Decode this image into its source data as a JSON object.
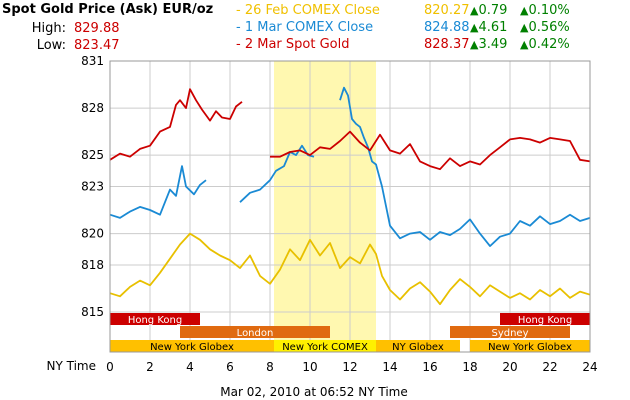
{
  "header": {
    "title": "Spot Gold Price (Ask) EUR/oz",
    "high_label": "High:",
    "high_value": "829.88",
    "low_label": "Low:",
    "low_value": "823.47",
    "legend": [
      {
        "label": "- 26 Feb COMEX Close",
        "value": "820.27",
        "chg": "0.79",
        "pct": "0.10%",
        "color": "#f0c000"
      },
      {
        "label": "- 1 Mar COMEX Close",
        "value": "824.88",
        "chg": "4.61",
        "pct": "0.56%",
        "color": "#1a8ad4"
      },
      {
        "label": "- 2 Mar Spot Gold",
        "value": "828.37",
        "chg": "3.49",
        "pct": "0.42%",
        "color": "#cc0000"
      }
    ]
  },
  "footer": {
    "x_axis_label": "NY Time",
    "timestamp": "Mar 02, 2010 at 06:52 NY Time"
  },
  "colors": {
    "red": "#cc0000",
    "blue": "#1a8ad4",
    "yellow": "#e8c000",
    "green": "#008000",
    "highlight": "#fff8b0",
    "hongkong": "#cc0000",
    "london": "#e06a10",
    "nyglobex": "#ffc000",
    "nycomex": "#fff000",
    "sydney": "#e06a10"
  },
  "chart_data": {
    "type": "line",
    "xlabel": "NY Time",
    "ylabel": "",
    "xlim": [
      0,
      24
    ],
    "ylim": [
      815,
      831
    ],
    "x_ticks": [
      0,
      2,
      4,
      6,
      8,
      10,
      12,
      14,
      16,
      18,
      20,
      22,
      24
    ],
    "y_ticks": [
      815,
      818,
      820,
      823,
      825,
      828,
      831
    ],
    "grid": true,
    "highlight_range": [
      8.2,
      13.3
    ],
    "sessions": [
      {
        "name": "Hong Kong",
        "row": 0,
        "start": 0,
        "end": 4.5,
        "color": "#cc0000",
        "text_color": "#ffffff"
      },
      {
        "name": "Hong Kong",
        "row": 0,
        "start": 19.5,
        "end": 24,
        "color": "#cc0000",
        "text_color": "#ffffff"
      },
      {
        "name": "London",
        "row": 1,
        "start": 3.5,
        "end": 11,
        "color": "#e06a10",
        "text_color": "#ffffff"
      },
      {
        "name": "Sydney",
        "row": 1,
        "start": 17,
        "end": 23,
        "color": "#e06a10",
        "text_color": "#ffffff"
      },
      {
        "name": "New York Globex",
        "row": 2,
        "start": 0,
        "end": 8.2,
        "color": "#ffc000",
        "text_color": "#000000"
      },
      {
        "name": "New York COMEX",
        "row": 2,
        "start": 8.2,
        "end": 13.3,
        "color": "#fff000",
        "text_color": "#000000"
      },
      {
        "name": "NY Globex",
        "row": 2,
        "start": 13.3,
        "end": 17.5,
        "color": "#ffc000",
        "text_color": "#000000"
      },
      {
        "name": "New York Globex",
        "row": 2,
        "start": 18,
        "end": 24,
        "color": "#ffc000",
        "text_color": "#000000"
      }
    ],
    "series": [
      {
        "name": "26 Feb COMEX Close",
        "color": "#e8c000",
        "segments": [
          [
            [
              0,
              816.2
            ],
            [
              0.5,
              816.0
            ],
            [
              1,
              816.6
            ],
            [
              1.5,
              817.0
            ],
            [
              2,
              816.7
            ],
            [
              2.5,
              817.5
            ],
            [
              3,
              818.4
            ],
            [
              3.5,
              819.3
            ],
            [
              4,
              820.0
            ],
            [
              4.5,
              819.6
            ],
            [
              5,
              819.0
            ],
            [
              5.5,
              818.6
            ],
            [
              6,
              818.3
            ],
            [
              6.5,
              817.8
            ],
            [
              7,
              818.6
            ],
            [
              7.5,
              817.3
            ],
            [
              8,
              816.8
            ],
            [
              8.5,
              817.7
            ],
            [
              9,
              819.0
            ],
            [
              9.5,
              818.3
            ],
            [
              10,
              819.6
            ],
            [
              10.5,
              818.6
            ],
            [
              11,
              819.4
            ],
            [
              11.5,
              817.8
            ],
            [
              12,
              818.5
            ],
            [
              12.5,
              818.1
            ],
            [
              13,
              819.3
            ],
            [
              13.3,
              818.7
            ],
            [
              13.6,
              817.3
            ],
            [
              14,
              816.4
            ],
            [
              14.5,
              815.8
            ],
            [
              15,
              816.5
            ],
            [
              15.5,
              816.9
            ],
            [
              16,
              816.3
            ],
            [
              16.5,
              815.5
            ],
            [
              17,
              816.4
            ],
            [
              17.5,
              817.1
            ],
            [
              18,
              816.6
            ],
            [
              18.5,
              816.0
            ],
            [
              19,
              816.7
            ],
            [
              19.5,
              816.3
            ],
            [
              20,
              815.9
            ],
            [
              20.5,
              816.2
            ],
            [
              21,
              815.8
            ],
            [
              21.5,
              816.4
            ],
            [
              22,
              816.0
            ],
            [
              22.5,
              816.5
            ],
            [
              23,
              815.9
            ],
            [
              23.5,
              816.3
            ],
            [
              24,
              816.1
            ]
          ]
        ]
      },
      {
        "name": "1 Mar COMEX Close",
        "color": "#1a8ad4",
        "segments": [
          [
            [
              0,
              821.2
            ],
            [
              0.5,
              821.0
            ],
            [
              1,
              821.4
            ],
            [
              1.5,
              821.7
            ],
            [
              2,
              821.5
            ],
            [
              2.5,
              821.2
            ],
            [
              3,
              822.8
            ],
            [
              3.3,
              822.4
            ],
            [
              3.6,
              824.3
            ],
            [
              3.8,
              823.0
            ],
            [
              4.2,
              822.5
            ],
            [
              4.5,
              823.1
            ],
            [
              4.8,
              823.4
            ]
          ],
          [
            [
              6.5,
              822.0
            ],
            [
              7,
              822.6
            ],
            [
              7.5,
              822.8
            ],
            [
              8,
              823.4
            ],
            [
              8.3,
              824.0
            ],
            [
              8.7,
              824.3
            ],
            [
              9,
              825.2
            ],
            [
              9.3,
              825.0
            ],
            [
              9.6,
              825.6
            ],
            [
              9.9,
              825.0
            ],
            [
              10.2,
              824.9
            ]
          ],
          [
            [
              11.5,
              828.5
            ],
            [
              11.7,
              829.3
            ],
            [
              11.9,
              828.8
            ],
            [
              12.1,
              827.3
            ],
            [
              12.3,
              827.0
            ],
            [
              12.5,
              826.8
            ],
            [
              12.7,
              826.1
            ],
            [
              12.9,
              825.5
            ],
            [
              13.1,
              824.6
            ],
            [
              13.3,
              824.4
            ],
            [
              13.6,
              823.0
            ],
            [
              14,
              820.5
            ],
            [
              14.5,
              819.7
            ],
            [
              15,
              820.0
            ],
            [
              15.5,
              820.1
            ],
            [
              16,
              819.6
            ],
            [
              16.5,
              820.1
            ],
            [
              17,
              819.9
            ],
            [
              17.5,
              820.3
            ],
            [
              18,
              820.9
            ],
            [
              18.5,
              820.0
            ],
            [
              19,
              819.2
            ],
            [
              19.5,
              819.8
            ],
            [
              20,
              820.0
            ],
            [
              20.5,
              820.8
            ],
            [
              21,
              820.5
            ],
            [
              21.5,
              821.1
            ],
            [
              22,
              820.6
            ],
            [
              22.5,
              820.8
            ],
            [
              23,
              821.2
            ],
            [
              23.5,
              820.8
            ],
            [
              24,
              821.0
            ]
          ]
        ]
      },
      {
        "name": "2 Mar Spot Gold",
        "color": "#cc0000",
        "segments": [
          [
            [
              0,
              824.7
            ],
            [
              0.5,
              825.1
            ],
            [
              1,
              824.9
            ],
            [
              1.5,
              825.4
            ],
            [
              2,
              825.6
            ],
            [
              2.5,
              826.5
            ],
            [
              3,
              826.8
            ],
            [
              3.3,
              828.2
            ],
            [
              3.5,
              828.5
            ],
            [
              3.8,
              828.0
            ],
            [
              4,
              829.2
            ],
            [
              4.3,
              828.5
            ],
            [
              4.6,
              827.9
            ],
            [
              5,
              827.2
            ],
            [
              5.3,
              827.8
            ],
            [
              5.6,
              827.4
            ],
            [
              6,
              827.3
            ],
            [
              6.3,
              828.1
            ],
            [
              6.6,
              828.4
            ]
          ],
          [
            [
              8,
              824.9
            ],
            [
              8.5,
              824.9
            ],
            [
              9,
              825.2
            ],
            [
              9.5,
              825.3
            ],
            [
              10,
              825.0
            ],
            [
              10.5,
              825.5
            ],
            [
              11,
              825.4
            ],
            [
              11.5,
              825.9
            ],
            [
              12,
              826.5
            ],
            [
              12.5,
              825.8
            ],
            [
              13,
              825.3
            ],
            [
              13.5,
              826.3
            ],
            [
              14,
              825.3
            ],
            [
              14.5,
              825.1
            ],
            [
              15,
              825.7
            ],
            [
              15.5,
              824.6
            ],
            [
              16,
              824.3
            ],
            [
              16.5,
              824.1
            ],
            [
              17,
              824.8
            ],
            [
              17.5,
              824.3
            ],
            [
              18,
              824.6
            ],
            [
              18.5,
              824.4
            ],
            [
              19,
              825.0
            ],
            [
              19.5,
              825.5
            ],
            [
              20,
              826.0
            ],
            [
              20.5,
              826.1
            ],
            [
              21,
              826.0
            ],
            [
              21.5,
              825.8
            ],
            [
              22,
              826.1
            ],
            [
              22.5,
              826.0
            ],
            [
              23,
              825.9
            ],
            [
              23.5,
              824.7
            ],
            [
              24,
              824.6
            ]
          ]
        ]
      }
    ]
  }
}
